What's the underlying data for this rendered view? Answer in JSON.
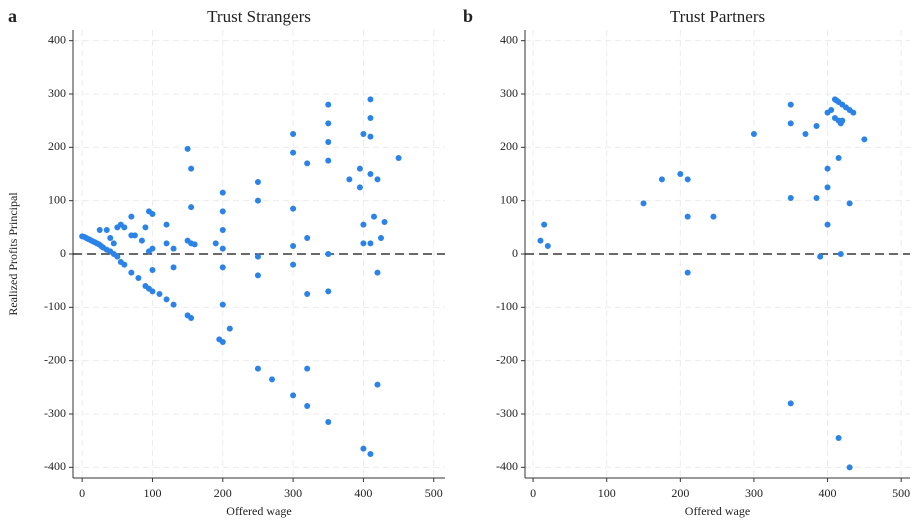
{
  "chart_data": [
    {
      "type": "scatter",
      "panel_label": "a",
      "title": "Trust Strangers",
      "xlabel": "Offered wage",
      "ylabel": "Realized Profits Principal",
      "color": "#2b83e8",
      "xlim": [
        -13,
        516
      ],
      "ylim": [
        -420,
        420
      ],
      "xticks": [
        0,
        100,
        200,
        300,
        400,
        500
      ],
      "yticks": [
        -400,
        -300,
        -200,
        -100,
        0,
        100,
        200,
        300,
        400
      ],
      "grid": true,
      "reference_line": 0,
      "x": [
        0,
        3,
        6,
        9,
        12,
        15,
        18,
        21,
        24,
        27,
        30,
        35,
        40,
        45,
        50,
        55,
        60,
        70,
        80,
        90,
        95,
        100,
        110,
        120,
        130,
        40,
        45,
        25,
        35,
        50,
        55,
        60,
        70,
        70,
        75,
        85,
        90,
        95,
        100,
        100,
        95,
        100,
        120,
        120,
        130,
        130,
        150,
        155,
        155,
        150,
        155,
        160,
        150,
        155,
        210,
        195,
        200,
        200,
        200,
        200,
        200,
        200,
        200,
        190,
        250,
        250,
        250,
        250,
        250,
        270,
        300,
        300,
        300,
        300,
        300,
        300,
        320,
        320,
        320,
        320,
        320,
        350,
        350,
        350,
        350,
        350,
        350,
        350,
        380,
        395,
        395,
        400,
        400,
        400,
        400,
        410,
        410,
        410,
        410,
        410,
        415,
        420,
        420,
        420,
        425,
        430,
        450,
        410
      ],
      "values": [
        33,
        32,
        30,
        28,
        26,
        24,
        22,
        20,
        18,
        15,
        12,
        8,
        5,
        0,
        -5,
        -15,
        -20,
        -35,
        -45,
        -60,
        -65,
        -70,
        -75,
        -85,
        -95,
        30,
        20,
        45,
        45,
        50,
        55,
        50,
        70,
        35,
        35,
        25,
        50,
        80,
        75,
        10,
        5,
        -30,
        55,
        20,
        10,
        -25,
        197,
        160,
        88,
        25,
        20,
        18,
        -115,
        -120,
        -140,
        -160,
        -165,
        -95,
        -25,
        10,
        45,
        80,
        115,
        20,
        135,
        100,
        -5,
        -40,
        -215,
        -235,
        225,
        190,
        85,
        15,
        -20,
        -265,
        170,
        30,
        -75,
        -215,
        -285,
        280,
        245,
        210,
        175,
        0,
        -70,
        -315,
        140,
        160,
        125,
        225,
        55,
        20,
        -365,
        255,
        220,
        150,
        -375,
        290,
        70,
        140,
        -35,
        -245,
        30,
        60,
        180,
        20
      ]
    },
    {
      "type": "scatter",
      "panel_label": "b",
      "title": "Trust Partners",
      "xlabel": "Offered wage",
      "color": "#2b83e8",
      "xlim": [
        -11,
        512
      ],
      "ylim": [
        -420,
        420
      ],
      "xticks": [
        0,
        100,
        200,
        300,
        400,
        500
      ],
      "yticks": [
        -400,
        -300,
        -200,
        -100,
        0,
        100,
        200,
        300,
        400
      ],
      "grid": true,
      "reference_line": 0,
      "x": [
        10,
        15,
        20,
        150,
        175,
        200,
        210,
        210,
        210,
        245,
        300,
        350,
        350,
        350,
        350,
        370,
        385,
        385,
        390,
        400,
        400,
        400,
        400,
        405,
        410,
        410,
        412,
        415,
        415,
        415,
        418,
        418,
        420,
        420,
        425,
        430,
        430,
        435,
        450,
        415,
        430
      ],
      "values": [
        25,
        55,
        15,
        95,
        140,
        150,
        140,
        70,
        -35,
        70,
        225,
        280,
        245,
        105,
        -280,
        225,
        240,
        105,
        -5,
        265,
        160,
        125,
        55,
        270,
        290,
        255,
        288,
        285,
        250,
        180,
        245,
        0,
        280,
        250,
        275,
        270,
        95,
        265,
        215,
        -345,
        -400
      ]
    }
  ]
}
